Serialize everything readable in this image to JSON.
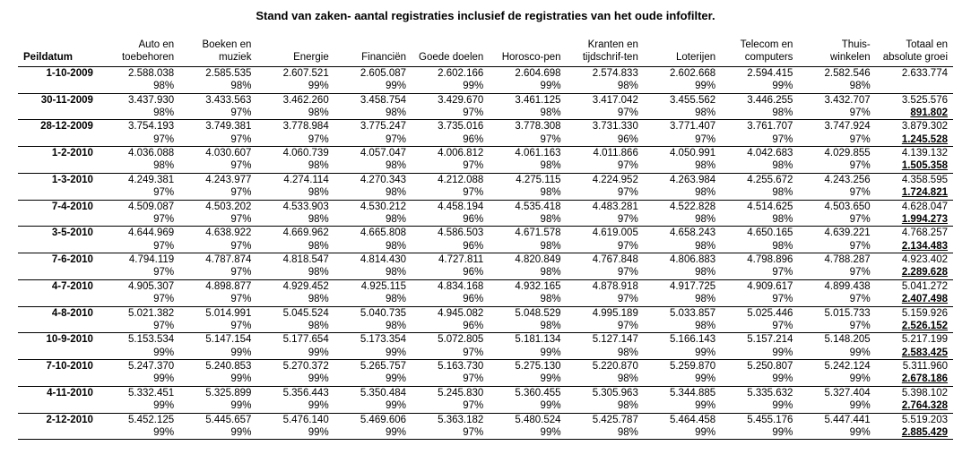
{
  "title": "Stand van zaken- aantal registraties inclusief de registraties van het oude infofilter.",
  "columns": [
    "Peildatum",
    "Auto en toebehoren",
    "Boeken en muziek",
    "Energie",
    "Financiën",
    "Goede doelen",
    "Horosco-pen",
    "Kranten en tijdschrif-ten",
    "Loterijen",
    "Telecom en computers",
    "Thuis-winkelen",
    "Totaal en absolute groei"
  ],
  "rows": [
    {
      "date": "1-10-2009",
      "vals": [
        "2.588.038",
        "2.585.535",
        "2.607.521",
        "2.605.087",
        "2.602.166",
        "2.604.698",
        "2.574.833",
        "2.602.668",
        "2.594.415",
        "2.582.546"
      ],
      "pcts": [
        "98%",
        "98%",
        "99%",
        "99%",
        "99%",
        "99%",
        "98%",
        "99%",
        "99%",
        "98%"
      ],
      "total": "2.633.774",
      "growth": ""
    },
    {
      "date": "30-11-2009",
      "vals": [
        "3.437.930",
        "3.433.563",
        "3.462.260",
        "3.458.754",
        "3.429.670",
        "3.461.125",
        "3.417.042",
        "3.455.562",
        "3.446.255",
        "3.432.707"
      ],
      "pcts": [
        "98%",
        "97%",
        "98%",
        "98%",
        "97%",
        "98%",
        "97%",
        "98%",
        "98%",
        "97%"
      ],
      "total": "3.525.576",
      "growth": "891.802"
    },
    {
      "date": "28-12-2009",
      "vals": [
        "3.754.193",
        "3.749.381",
        "3.778.984",
        "3.775.247",
        "3.735.016",
        "3.778.308",
        "3.731.330",
        "3.771.407",
        "3.761.707",
        "3.747.924"
      ],
      "pcts": [
        "97%",
        "97%",
        "97%",
        "97%",
        "96%",
        "97%",
        "96%",
        "97%",
        "97%",
        "97%"
      ],
      "total": "3.879.302",
      "growth": "1.245.528"
    },
    {
      "date": "1-2-2010",
      "vals": [
        "4.036.088",
        "4.030.607",
        "4.060.739",
        "4.057.047",
        "4.006.812",
        "4.061.163",
        "4.011.866",
        "4.050.991",
        "4.042.683",
        "4.029.855"
      ],
      "pcts": [
        "98%",
        "97%",
        "98%",
        "98%",
        "97%",
        "98%",
        "97%",
        "98%",
        "98%",
        "97%"
      ],
      "total": "4.139.132",
      "growth": "1.505.358"
    },
    {
      "date": "1-3-2010",
      "vals": [
        "4.249.381",
        "4.243.977",
        "4.274.114",
        "4.270.343",
        "4.212.088",
        "4.275.115",
        "4.224.952",
        "4.263.984",
        "4.255.672",
        "4.243.256"
      ],
      "pcts": [
        "97%",
        "97%",
        "98%",
        "98%",
        "97%",
        "98%",
        "97%",
        "98%",
        "98%",
        "97%"
      ],
      "total": "4.358.595",
      "growth": "1.724.821"
    },
    {
      "date": "7-4-2010",
      "vals": [
        "4.509.087",
        "4.503.202",
        "4.533.903",
        "4.530.212",
        "4.458.194",
        "4.535.418",
        "4.483.281",
        "4.522.828",
        "4.514.625",
        "4.503.650"
      ],
      "pcts": [
        "97%",
        "97%",
        "98%",
        "98%",
        "96%",
        "98%",
        "97%",
        "98%",
        "98%",
        "97%"
      ],
      "total": "4.628.047",
      "growth": "1.994.273"
    },
    {
      "date": "3-5-2010",
      "vals": [
        "4.644.969",
        "4.638.922",
        "4.669.962",
        "4.665.808",
        "4.586.503",
        "4.671.578",
        "4.619.005",
        "4.658.243",
        "4.650.165",
        "4.639.221"
      ],
      "pcts": [
        "97%",
        "97%",
        "98%",
        "98%",
        "96%",
        "98%",
        "97%",
        "98%",
        "98%",
        "97%"
      ],
      "total": "4.768.257",
      "growth": "2.134.483"
    },
    {
      "date": "7-6-2010",
      "vals": [
        "4.794.119",
        "4.787.874",
        "4.818.547",
        "4.814.430",
        "4.727.811",
        "4.820.849",
        "4.767.848",
        "4.806.883",
        "4.798.896",
        "4.788.287"
      ],
      "pcts": [
        "97%",
        "97%",
        "98%",
        "98%",
        "96%",
        "98%",
        "97%",
        "98%",
        "97%",
        "97%"
      ],
      "total": "4.923.402",
      "growth": "2.289.628"
    },
    {
      "date": "4-7-2010",
      "vals": [
        "4.905.307",
        "4.898.877",
        "4.929.452",
        "4.925.115",
        "4.834.168",
        "4.932.165",
        "4.878.918",
        "4.917.725",
        "4.909.617",
        "4.899.438"
      ],
      "pcts": [
        "97%",
        "97%",
        "98%",
        "98%",
        "96%",
        "98%",
        "97%",
        "98%",
        "97%",
        "97%"
      ],
      "total": "5.041.272",
      "growth": "2.407.498"
    },
    {
      "date": "4-8-2010",
      "vals": [
        "5.021.382",
        "5.014.991",
        "5.045.524",
        "5.040.735",
        "4.945.082",
        "5.048.529",
        "4.995.189",
        "5.033.857",
        "5.025.446",
        "5.015.733"
      ],
      "pcts": [
        "97%",
        "97%",
        "98%",
        "98%",
        "96%",
        "98%",
        "97%",
        "98%",
        "97%",
        "97%"
      ],
      "total": "5.159.926",
      "growth": "2.526.152"
    },
    {
      "date": "10-9-2010",
      "vals": [
        "5.153.534",
        "5.147.154",
        "5.177.654",
        "5.173.354",
        "5.072.805",
        "5.181.134",
        "5.127.147",
        "5.166.143",
        "5.157.214",
        "5.148.205"
      ],
      "pcts": [
        "99%",
        "99%",
        "99%",
        "99%",
        "97%",
        "99%",
        "98%",
        "99%",
        "99%",
        "99%"
      ],
      "total": "5.217.199",
      "growth": "2.583.425"
    },
    {
      "date": "7-10-2010",
      "vals": [
        "5.247.370",
        "5.240.853",
        "5.270.372",
        "5.265.757",
        "5.163.730",
        "5.275.130",
        "5.220.870",
        "5.259.870",
        "5.250.807",
        "5.242.124"
      ],
      "pcts": [
        "99%",
        "99%",
        "99%",
        "99%",
        "97%",
        "99%",
        "98%",
        "99%",
        "99%",
        "99%"
      ],
      "total": "5.311.960",
      "growth": "2.678.186"
    },
    {
      "date": "4-11-2010",
      "vals": [
        "5.332.451",
        "5.325.899",
        "5.356.443",
        "5.350.484",
        "5.245.830",
        "5.360.455",
        "5.305.963",
        "5.344.885",
        "5.335.632",
        "5.327.404"
      ],
      "pcts": [
        "99%",
        "99%",
        "99%",
        "99%",
        "97%",
        "99%",
        "98%",
        "99%",
        "99%",
        "99%"
      ],
      "total": "5.398.102",
      "growth": "2.764.328"
    },
    {
      "date": "2-12-2010",
      "vals": [
        "5.452.125",
        "5.445.657",
        "5.476.140",
        "5.469.606",
        "5.363.182",
        "5.480.524",
        "5.425.787",
        "5.464.458",
        "5.455.176",
        "5.447.441"
      ],
      "pcts": [
        "99%",
        "99%",
        "99%",
        "99%",
        "97%",
        "99%",
        "98%",
        "99%",
        "99%",
        "99%"
      ],
      "total": "5.519.203",
      "growth": "2.885.429"
    }
  ]
}
